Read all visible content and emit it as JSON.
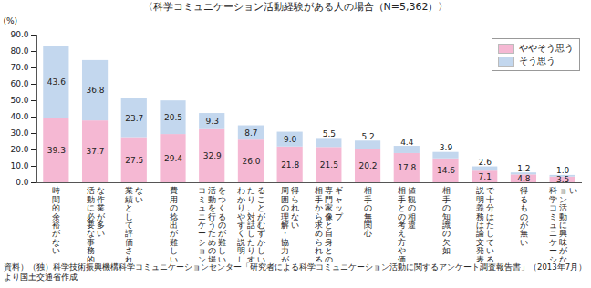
{
  "chart_data": {
    "type": "bar",
    "stacked": true,
    "title": "〈科学コミュニケーション活動経験がある人の場合（N=5,362）〉",
    "ylabel": "(%)",
    "caption": "資料）（独）科学技術振興機構科学コミュニケーションセンター「研究者による科学コミュニケーション活動に関するアンケート調査報告書」（2013年7月）より国土交通省作成",
    "categories": [
      "時間的余裕がない",
      "活動に必要な事務的な作業が多い",
      "業績として評価されない",
      "費用の捻出が難しい",
      "コミュニケーション活動を行うための場をつくるのが難しい",
      "わかりやすく説明したり、対話したりすることがむずかしい",
      "周囲の理解・協力が得られない",
      "相手から求められる専門家像と自身とのギャップ",
      "相手の無関心",
      "相手との考え方や価値観の相違",
      "相手の知識の欠如",
      "説明義務は論文発表で十分はたしている",
      "得るものが無い",
      "科学コミュニケーション活動に興味がない"
    ],
    "series": [
      {
        "name": "ややそう思う",
        "color": "#f5b8d3",
        "values": [
          39.3,
          37.7,
          27.5,
          29.4,
          32.9,
          26.0,
          21.8,
          21.5,
          20.2,
          17.8,
          14.6,
          7.1,
          4.8,
          3.5
        ],
        "value_labels": [
          "39.3",
          "37.7",
          "27.5",
          "29.4",
          "32.9",
          "26.0",
          "21.8",
          "21.5",
          "20.2",
          "17.8",
          "14.6",
          "7.1",
          "4.8",
          "3.5"
        ]
      },
      {
        "name": "そう思う",
        "color": "#c3d7ee",
        "values": [
          43.6,
          36.8,
          23.7,
          20.5,
          9.3,
          8.7,
          9.0,
          5.5,
          5.2,
          4.4,
          3.9,
          2.6,
          1.2,
          1.0
        ],
        "value_labels": [
          "43.6",
          "36.8",
          "23.7",
          "20.5",
          "9.3",
          "8.7",
          "9.0",
          "5.5",
          "5.2",
          "4.4",
          "3.9",
          "2.6",
          "1.2",
          "1.0"
        ]
      }
    ],
    "ylim": [
      0,
      90
    ],
    "yticks": [
      {
        "value": 0,
        "label": "0.0"
      },
      {
        "value": 10,
        "label": "10.0"
      },
      {
        "value": 20,
        "label": "20.0"
      },
      {
        "value": 30,
        "label": "30.0"
      },
      {
        "value": 40,
        "label": "40.0"
      },
      {
        "value": 50,
        "label": "50.0"
      },
      {
        "value": 60,
        "label": "60.0"
      },
      {
        "value": 70,
        "label": "70.0"
      },
      {
        "value": 80,
        "label": "80.0"
      },
      {
        "value": 90,
        "label": "90.0"
      }
    ],
    "data_labels": true,
    "legend": "top-right"
  }
}
